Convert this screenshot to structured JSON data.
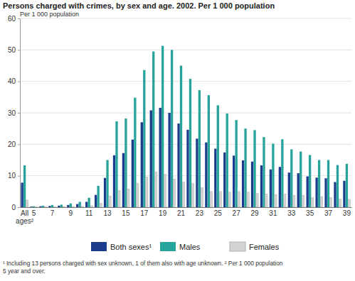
{
  "chart_data": {
    "type": "bar",
    "title": "Persons charged with crimes, by sex and age. 2002. Per 1 000 population",
    "y_label": "Per 1 000 population",
    "categories": [
      "All ages²",
      "5",
      null,
      "7",
      null,
      "9",
      null,
      "11",
      null,
      "13",
      null,
      "15",
      null,
      "17",
      null,
      "19",
      null,
      "21",
      null,
      "23",
      null,
      "25",
      null,
      "27",
      null,
      "29",
      null,
      "31",
      null,
      "33",
      null,
      "35",
      null,
      "37",
      null,
      "39"
    ],
    "series": [
      {
        "name": "Both sexes¹",
        "color": "#1b3c8c",
        "values": [
          7.8,
          0.2,
          0.3,
          0.4,
          0.5,
          0.7,
          1.0,
          1.7,
          3.9,
          9.3,
          16.5,
          17.2,
          21.5,
          27.0,
          30.8,
          31.6,
          30.0,
          26.6,
          24.6,
          21.8,
          20.6,
          18.6,
          17.4,
          16.4,
          14.9,
          14.5,
          13.3,
          12.0,
          12.8,
          11.0,
          10.8,
          9.8,
          9.4,
          9.2,
          8.0,
          8.4
        ]
      },
      {
        "name": "Males",
        "color": "#26a39b",
        "values": [
          13.3,
          0.3,
          0.5,
          0.7,
          0.8,
          1.2,
          1.7,
          3.0,
          6.8,
          15.0,
          27.3,
          28.2,
          34.8,
          43.6,
          49.5,
          51.3,
          50.0,
          45.0,
          40.8,
          37.2,
          35.6,
          32.4,
          29.8,
          27.7,
          25.0,
          24.5,
          22.3,
          20.2,
          21.6,
          18.4,
          17.7,
          16.6,
          15.0,
          15.0,
          13.4,
          13.8
        ]
      },
      {
        "name": "Females",
        "color": "#d3d3d3",
        "values": [
          2.3,
          0.1,
          0.1,
          0.1,
          0.2,
          0.2,
          0.3,
          0.5,
          1.3,
          3.6,
          5.3,
          5.8,
          7.6,
          9.6,
          11.2,
          10.5,
          9.0,
          8.0,
          7.6,
          6.2,
          5.0,
          5.0,
          4.8,
          5.0,
          4.8,
          4.4,
          4.2,
          4.0,
          4.2,
          3.8,
          3.8,
          3.0,
          3.4,
          3.1,
          2.6,
          2.5
        ]
      }
    ],
    "ylim": [
      0,
      60
    ],
    "yticks": [
      0,
      10,
      20,
      30,
      40,
      50,
      60
    ],
    "grid": true,
    "legend": "bottom",
    "annotations": [
      "¹ Including 13 persons charged with sex unknown, 1 of them also with age unknown. ² Per 1 000 population",
      "5 year and over."
    ]
  }
}
